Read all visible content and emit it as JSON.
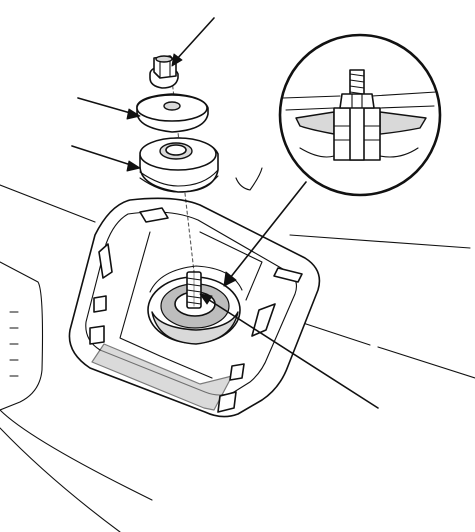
{
  "figure": {
    "components": [
      {
        "name": "flange-nut-icon"
      },
      {
        "name": "washer-icon"
      },
      {
        "name": "rubber-bushing-icon"
      },
      {
        "name": "mounting-bracket-icon"
      },
      {
        "name": "threaded-stud-icon"
      },
      {
        "name": "detail-magnifier-icon"
      }
    ],
    "leader_arrows": 5
  }
}
